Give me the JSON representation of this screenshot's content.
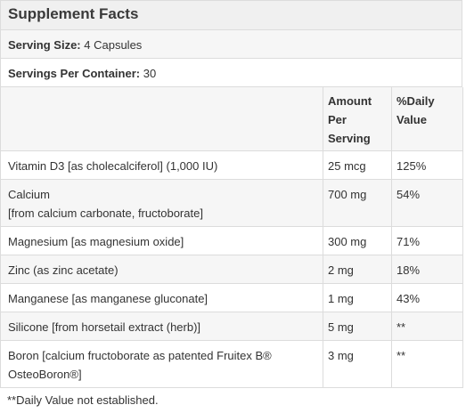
{
  "title": "Supplement Facts",
  "serving_size": {
    "label": "Serving Size:",
    "value": "4 Capsules"
  },
  "servings_per_container": {
    "label": "Servings Per Container:",
    "value": "30"
  },
  "columns": {
    "amount_line1": "Amount",
    "amount_line2": "Per",
    "amount_line3": "Serving",
    "dv_line1": "%Daily",
    "dv_line2": "Value"
  },
  "rows": [
    {
      "name_line1": "Vitamin D3 [as cholecalciferol] (1,000 IU)",
      "name_line2": "",
      "amount": "25 mcg",
      "dv": "125%"
    },
    {
      "name_line1": "Calcium",
      "name_line2": "[from calcium carbonate, fructoborate]",
      "amount": "700 mg",
      "dv": "54%"
    },
    {
      "name_line1": "Magnesium [as magnesium oxide]",
      "name_line2": "",
      "amount": "300 mg",
      "dv": "71%"
    },
    {
      "name_line1": "Zinc (as zinc acetate)",
      "name_line2": "",
      "amount": "2 mg",
      "dv": "18%"
    },
    {
      "name_line1": "Manganese [as manganese gluconate]",
      "name_line2": "",
      "amount": "1 mg",
      "dv": "43%"
    },
    {
      "name_line1": "Silicone [from horsetail extract (herb)]",
      "name_line2": "",
      "amount": "5 mg",
      "dv": "**"
    },
    {
      "name_line1": "Boron [calcium fructoborate as patented Fruitex B®",
      "name_line2": "OsteoBoron®]",
      "amount": "3 mg",
      "dv": "**"
    }
  ],
  "footnote": "**Daily Value not established."
}
